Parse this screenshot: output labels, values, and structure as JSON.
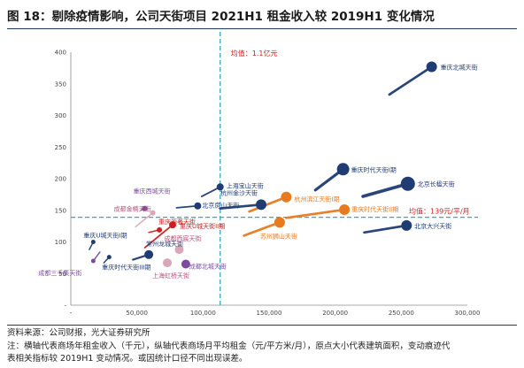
{
  "title": "图 18：剔除疫情影响，公司天街项目 2021H1 租金收入较 2019H1 变化情况",
  "footer": {
    "source": "资料来源：公司财报，光大证券研究所",
    "note_line1": "注：横轴代表商场年租金收入（千元），纵轴代表商场月平均租金（元/平方米/月），原点大小代表建筑面积，变动痕迹代",
    "note_line2": "表相关指标较 2019H1 变动情况。或因统计口径不同出现误差。"
  },
  "chart_data": {
    "type": "scatter",
    "xlim": [
      0,
      300000
    ],
    "ylim": [
      0,
      400
    ],
    "x_ticks": [
      "-",
      "50,000",
      "100,000",
      "150,000",
      "200,000",
      "250,000",
      "300,000"
    ],
    "y_ticks": [
      "-",
      "50",
      "100",
      "150",
      "200",
      "250",
      "300",
      "350",
      "400"
    ],
    "reference_lines": {
      "vertical": {
        "x": 113000,
        "label": "均值：1.1亿元"
      },
      "horizontal": {
        "y": 139,
        "label": "均值：139元/平/月"
      }
    },
    "colors": {
      "navy": "#1f3c73",
      "orange": "#e87a1f",
      "red": "#cc1f1f",
      "pink": "#d9a7b5",
      "purple": "#7b4c9e"
    },
    "points": [
      {
        "name": "重庆北城天街",
        "color": "navy",
        "x": 273000,
        "y": 377,
        "from_x": 241000,
        "from_y": 333,
        "size": 6
      },
      {
        "name": "重庆时代天街I期",
        "color": "navy",
        "x": 206000,
        "y": 215,
        "from_x": 185000,
        "from_y": 182,
        "size": 7
      },
      {
        "name": "北京长楹天街",
        "color": "navy",
        "x": 255000,
        "y": 192,
        "from_x": 221000,
        "from_y": 172,
        "size": 8
      },
      {
        "name": "北京大兴天街",
        "color": "navy",
        "x": 254000,
        "y": 126,
        "from_x": 222000,
        "from_y": 115,
        "size": 6
      },
      {
        "name": "上海宝山天街",
        "color": "navy",
        "x": 113000,
        "y": 187,
        "from_x": 99000,
        "from_y": 172,
        "size": 4
      },
      {
        "name": "北京房山天街",
        "color": "navy",
        "x": 96000,
        "y": 157,
        "from_x": 80000,
        "from_y": 154,
        "size": 4
      },
      {
        "name": "杭州金沙天街",
        "color": "navy",
        "x": 144000,
        "y": 159,
        "from_x": 113000,
        "from_y": 153,
        "size": 6
      },
      {
        "name": "重庆U城天街I期",
        "color": "navy",
        "x": 17000,
        "y": 100,
        "from_x": 14000,
        "from_y": 88,
        "size": 2.5
      },
      {
        "name": "重庆时代天街III期",
        "color": "navy",
        "x": 29000,
        "y": 76,
        "from_x": 25000,
        "from_y": 67,
        "size": 2.5
      },
      {
        "name": "常州龙城天街",
        "color": "navy",
        "x": 59000,
        "y": 80,
        "from_x": 47000,
        "from_y": 72,
        "size": 5
      },
      {
        "name": "杭州滨江天街I期",
        "color": "orange",
        "x": 163000,
        "y": 171,
        "from_x": 135000,
        "from_y": 148,
        "size": 6
      },
      {
        "name": "重庆时代天街II期",
        "color": "orange",
        "x": 207000,
        "y": 151,
        "from_x": 163000,
        "from_y": 138,
        "size": 6
      },
      {
        "name": "苏州狮山天街",
        "color": "orange",
        "x": 158000,
        "y": 131,
        "from_x": 131000,
        "from_y": 110,
        "size": 6
      },
      {
        "name": "重庆U城天街II期",
        "color": "red",
        "x": 77000,
        "y": 127,
        "from_x": 56000,
        "from_y": 91,
        "size": 4
      },
      {
        "name": "重庆源著天街",
        "color": "red",
        "x": 67000,
        "y": 119,
        "from_x": 59000,
        "from_y": 115,
        "size": 3
      },
      {
        "name": "成都金楠天街",
        "color": "pink",
        "x": 62000,
        "y": 146,
        "from_x": 49000,
        "from_y": 124,
        "size": 3
      },
      {
        "name": "成都西宸天街",
        "color": "pink",
        "x": 82000,
        "y": 88,
        "from_x": 80000,
        "from_y": 87,
        "size": 5
      },
      {
        "name": "上海虹桥天街",
        "color": "pink",
        "x": 73000,
        "y": 67,
        "from_x": 72000,
        "from_y": 65,
        "size": 5
      },
      {
        "name": "成都北城天街",
        "color": "purple",
        "x": 87000,
        "y": 65,
        "from_x": 86000,
        "from_y": 64,
        "size": 5
      },
      {
        "name": "重庆西城天街",
        "color": "purple",
        "x": 56000,
        "y": 153,
        "from_x": 53000,
        "from_y": 150,
        "size": 3
      },
      {
        "name": "成都三千集天街",
        "color": "purple",
        "x": 17000,
        "y": 70,
        "from_x": 22000,
        "from_y": 84,
        "size": 2.5
      }
    ]
  }
}
